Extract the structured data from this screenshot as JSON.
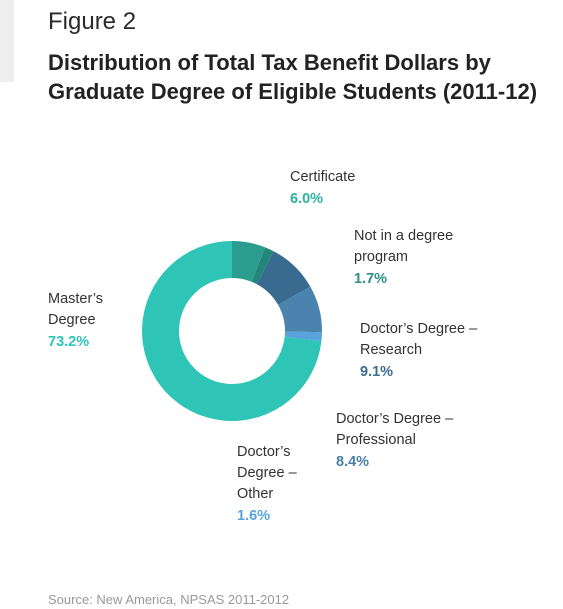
{
  "header": {
    "figure_label": "Figure 2",
    "title": "Distribution of Total Tax Benefit Dollars by Graduate Degree of Eligible Students (2011-12)"
  },
  "source": "Source: New America, NPSAS 2011-2012",
  "chart_data": {
    "type": "pie",
    "variant": "donut",
    "title": "Distribution of Total Tax Benefit Dollars by Graduate Degree of Eligible Students (2011-12)",
    "slices": [
      {
        "label_lines": [
          "Certificate"
        ],
        "value": 6.0,
        "value_label": "6.0%",
        "color": "#2a9d8f",
        "value_color": "#2ab3a0"
      },
      {
        "label_lines": [
          "Not in a degree",
          "program"
        ],
        "value": 1.7,
        "value_label": "1.7%",
        "color": "#23867a",
        "value_color": "#2a8f85"
      },
      {
        "label_lines": [
          "Doctor’s Degree –",
          "Research"
        ],
        "value": 9.1,
        "value_label": "9.1%",
        "color": "#386b8f",
        "value_color": "#3a6d93"
      },
      {
        "label_lines": [
          "Doctor’s Degree –",
          "Professional"
        ],
        "value": 8.4,
        "value_label": "8.4%",
        "color": "#4a84ae",
        "value_color": "#4a7fa8"
      },
      {
        "label_lines": [
          "Doctor’s",
          "Degree –",
          "Other"
        ],
        "value": 1.6,
        "value_label": "1.6%",
        "color": "#5aa2dc",
        "value_color": "#5aa2dc"
      },
      {
        "label_lines": [
          "Master’s",
          "Degree"
        ],
        "value": 73.2,
        "value_label": "73.2%",
        "color": "#2ec4b6",
        "value_color": "#2ec4b6"
      }
    ]
  }
}
